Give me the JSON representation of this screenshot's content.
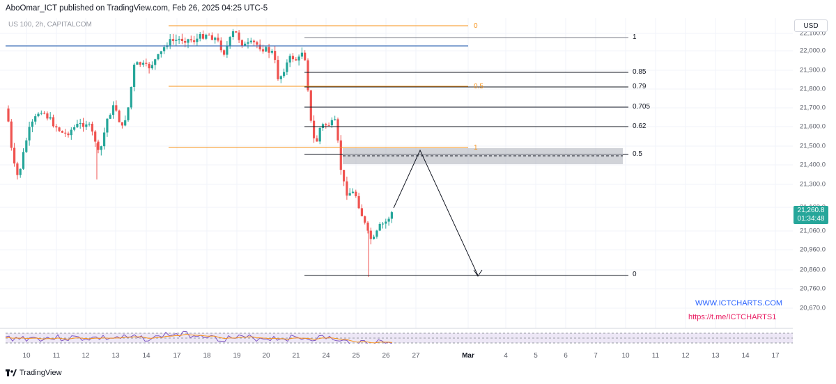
{
  "header": {
    "text": "AboOmar_ICT published on TradingView.com, Feb 26, 2025 04:25 UTC-5"
  },
  "symbol": {
    "text": "US 100, 2h, CAPITALCOM"
  },
  "currency": "USD",
  "price_axis": {
    "labels": [
      "22,100.0",
      "22,000.0",
      "21,900.0",
      "21,800.0",
      "21,700.0",
      "21,600.0",
      "21,500.0",
      "21,400.0",
      "21,300.0",
      "21,160.0",
      "21,060.0",
      "20,960.0",
      "20,860.0",
      "20,760.0",
      "20,670.0"
    ],
    "last_price": "21,260.8",
    "countdown": "01:34:48"
  },
  "time_axis": {
    "labels": [
      "10",
      "11",
      "12",
      "13",
      "14",
      "17",
      "18",
      "19",
      "20",
      "21",
      "24",
      "25",
      "26",
      "27",
      "Mar",
      "4",
      "5",
      "6",
      "7",
      "10",
      "11",
      "12",
      "13",
      "14",
      "17"
    ]
  },
  "fib_right": [
    "1",
    "0.85",
    "0.79",
    "0.705",
    "0.62",
    "0.5",
    "0"
  ],
  "fib_left": [
    "0",
    "0.5",
    "1"
  ],
  "links": {
    "site": "WWW.ICTCHARTS.COM",
    "telegram": "https://t.me/ICTCHARTS1"
  },
  "footer": {
    "brand": "TradingView"
  },
  "colors": {
    "up": "#26a69a",
    "down": "#ef5350",
    "fib_orange": "#f7931a",
    "blue_line": "#2962ff",
    "link_blue": "#2962ff",
    "link_pink": "#e91e63"
  }
}
